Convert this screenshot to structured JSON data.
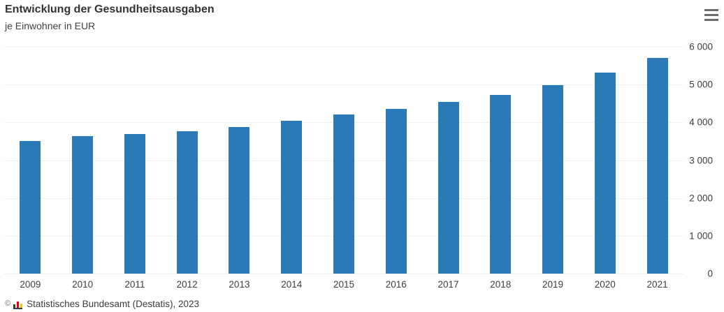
{
  "header": {
    "title": "Entwicklung der Gesundheitsausgaben",
    "subtitle": "je Einwohner in EUR"
  },
  "menu": {
    "icon": "hamburger-icon",
    "tooltip": "Chart context menu"
  },
  "chart_data": {
    "type": "bar",
    "title": "Entwicklung der Gesundheitsausgaben",
    "subtitle": "je Einwohner in EUR",
    "categories": [
      "2009",
      "2010",
      "2011",
      "2012",
      "2013",
      "2014",
      "2015",
      "2016",
      "2017",
      "2018",
      "2019",
      "2020",
      "2021"
    ],
    "values": [
      3500,
      3635,
      3690,
      3775,
      3885,
      4040,
      4205,
      4360,
      4545,
      4735,
      4985,
      5310,
      5700
    ],
    "xlabel": "",
    "ylabel": "",
    "ylim": [
      0,
      6000
    ],
    "ytick_interval": 1000,
    "ytick_labels": [
      "0",
      "1 000",
      "2 000",
      "3 000",
      "4 000",
      "5 000",
      "6 000"
    ],
    "grid": true,
    "legend": false,
    "yaxis_position": "right",
    "bar_color": "#2b7ab8"
  },
  "colors": {
    "bar": "#2b7ab8",
    "gridline": "#f1f1f1",
    "text": "#333333",
    "menu_icon": "#6b6b6b",
    "logo_dark": "#3a3a3a",
    "logo_red": "#e2001a",
    "logo_gold": "#f6c700"
  },
  "footer": {
    "copyright_symbol": "©",
    "logo": "destatis-bar-chart-logo",
    "source_text": "Statistisches Bundesamt (Destatis), 2023"
  }
}
